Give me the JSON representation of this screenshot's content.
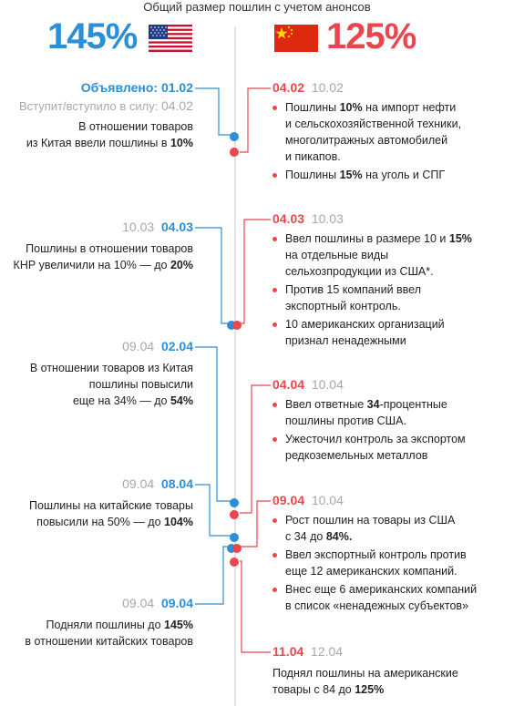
{
  "header": {
    "title": "Общий размер пошлин с учетом анонсов",
    "us_total": "145%",
    "cn_total": "125%",
    "us_flag_icon": "us-flag-icon",
    "cn_flag_icon": "china-flag-icon"
  },
  "colors": {
    "us": "#2a8fd8",
    "cn": "#e8474e",
    "muted": "#a8a8a8"
  },
  "us_events": [
    {
      "announced_label": "Объявлено: ",
      "announced": "01.02",
      "effective_label": "Вступит/вступило в силу: ",
      "effective": "04.02",
      "text_a": "В отношении товаров",
      "text_b": "из Китая ввели пошлины в ",
      "text_b_bold": "10%"
    },
    {
      "effective": "10.03",
      "announced": "04.03",
      "text_a": "Пошлины в отношении товаров",
      "text_b": "КНР увеличили на 10% — до ",
      "text_b_bold": "20%"
    },
    {
      "effective": "09.04",
      "announced": "02.04",
      "text_a": "В отношении товаров из Китая",
      "text_b": "пошлины повысили",
      "text_c": "еще на 34% — до ",
      "text_c_bold": "54%"
    },
    {
      "effective": "09.04",
      "announced": "08.04",
      "text_a": "Пошлины на китайские товары",
      "text_b": "повысили на 50% — до ",
      "text_b_bold": "104%"
    },
    {
      "effective": "09.04",
      "announced": "09.04",
      "text_a": "Подняли пошлины до ",
      "text_a_bold": "145%",
      "text_b": "в отношении китайских товаров"
    }
  ],
  "cn_events": [
    {
      "announced": "04.02",
      "effective": "10.02",
      "items": [
        {
          "t1": "Пошлины ",
          "b1": "10%",
          "t2": " на импорт нефти",
          "lines": [
            "и сельскохозяйственной техники,",
            "многолитражных автомобилей",
            "и пикапов."
          ]
        },
        {
          "t1": "Пошлины ",
          "b1": "15%",
          "t2": " на уголь и СПГ"
        }
      ]
    },
    {
      "announced": "04.03",
      "effective": "10.03",
      "items": [
        {
          "t1": "Ввел пошлины в размере 10 и ",
          "b1": "15%",
          "lines": [
            "на отдельные виды",
            "сельхозпродукции из США*."
          ]
        },
        {
          "t1": "Против 15 компаний ввел",
          "lines": [
            "экспортный контроль."
          ]
        },
        {
          "t1": "10 американских организаций",
          "lines": [
            "признал ненадежными"
          ]
        }
      ]
    },
    {
      "announced": "04.04",
      "effective": "10.04",
      "items": [
        {
          "t1": "Ввел ответные ",
          "b1": "34",
          "t2": "-процентные",
          "lines": [
            "пошлины против США."
          ]
        },
        {
          "t1": "Ужесточил контроль за экспортом",
          "lines": [
            "редкоземельных металлов"
          ]
        }
      ]
    },
    {
      "announced": "09.04",
      "effective": "10.04",
      "items": [
        {
          "t1": "Рост пошлин на товары из США",
          "lines": [
            "с 34 до "
          ],
          "lines_bold": "84%."
        },
        {
          "t1": "Ввел экспортный контроль против",
          "lines": [
            "еще 12 американских компаний."
          ]
        },
        {
          "t1": "Внес еще 6 американских компаний",
          "lines": [
            "в список «ненадежных субъектов»"
          ]
        }
      ]
    },
    {
      "announced": "11.04",
      "effective": "12.04",
      "text_a": "Поднял пошлины на американские",
      "text_b": "товары с 84 до ",
      "text_b_bold": "125%"
    }
  ]
}
